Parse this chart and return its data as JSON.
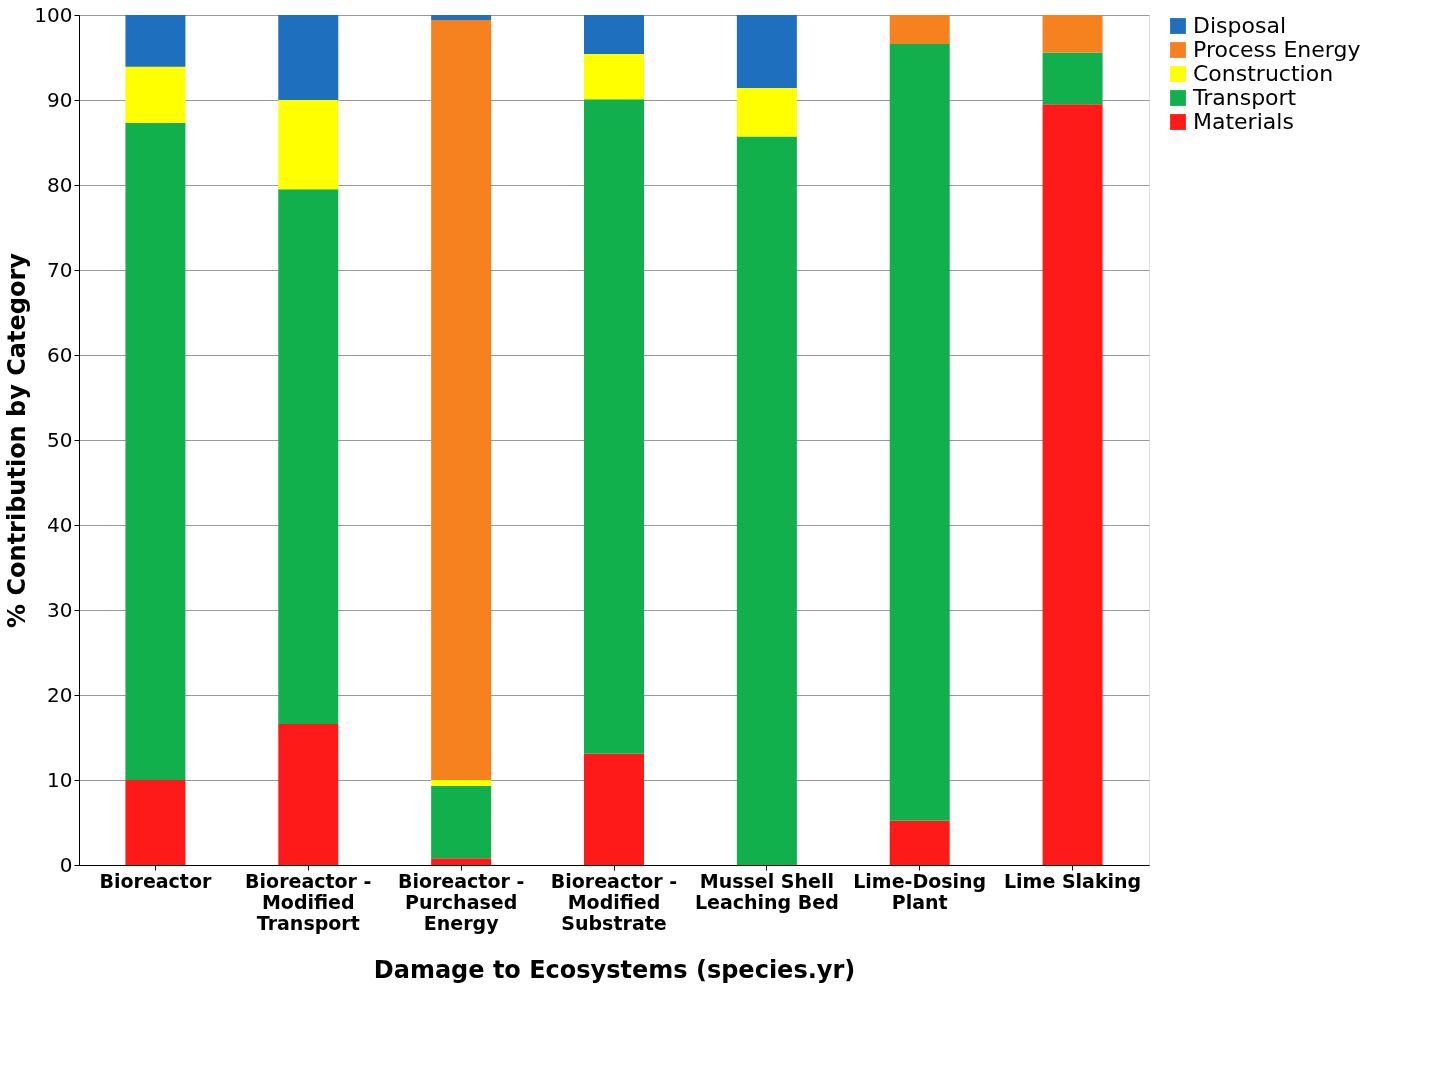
{
  "chart_data": {
    "type": "bar",
    "stacked": true,
    "xlabel": "Damage to Ecosystems (species.yr)",
    "ylabel": "% Contribution by Category",
    "categories": [
      "Bioreactor",
      "Bioreactor - Modified Transport",
      "Bioreactor - Purchased Energy",
      "Bioreactor - Modified Substrate",
      "Mussel Shell Leaching Bed",
      "Lime-Dosing Plant",
      "Lime Slaking"
    ],
    "series": [
      {
        "name": "Materials",
        "color": "#ff1a1a",
        "values": [
          10.0,
          16.6,
          0.8,
          13.1,
          0,
          5.2,
          89.5
        ]
      },
      {
        "name": "Transport",
        "color": "#12b04c",
        "values": [
          77.3,
          62.9,
          8.5,
          77.0,
          85.7,
          91.4,
          6.1
        ]
      },
      {
        "name": "Construction",
        "color": "#ffff00",
        "values": [
          6.6,
          10.5,
          0.7,
          5.3,
          5.7,
          0,
          0
        ]
      },
      {
        "name": "Process Energy",
        "color": "#f5821f",
        "values": [
          0,
          0,
          89.4,
          0,
          0,
          3.4,
          4.4
        ]
      },
      {
        "name": "Disposal",
        "color": "#1f6fbf",
        "values": [
          6.1,
          10.0,
          0.6,
          4.6,
          8.6,
          0,
          0
        ]
      }
    ],
    "ylim": [
      0,
      100
    ],
    "yticks": [
      0,
      10,
      20,
      30,
      40,
      50,
      60,
      70,
      80,
      90,
      100
    ],
    "grid": "y",
    "legend": "right"
  }
}
